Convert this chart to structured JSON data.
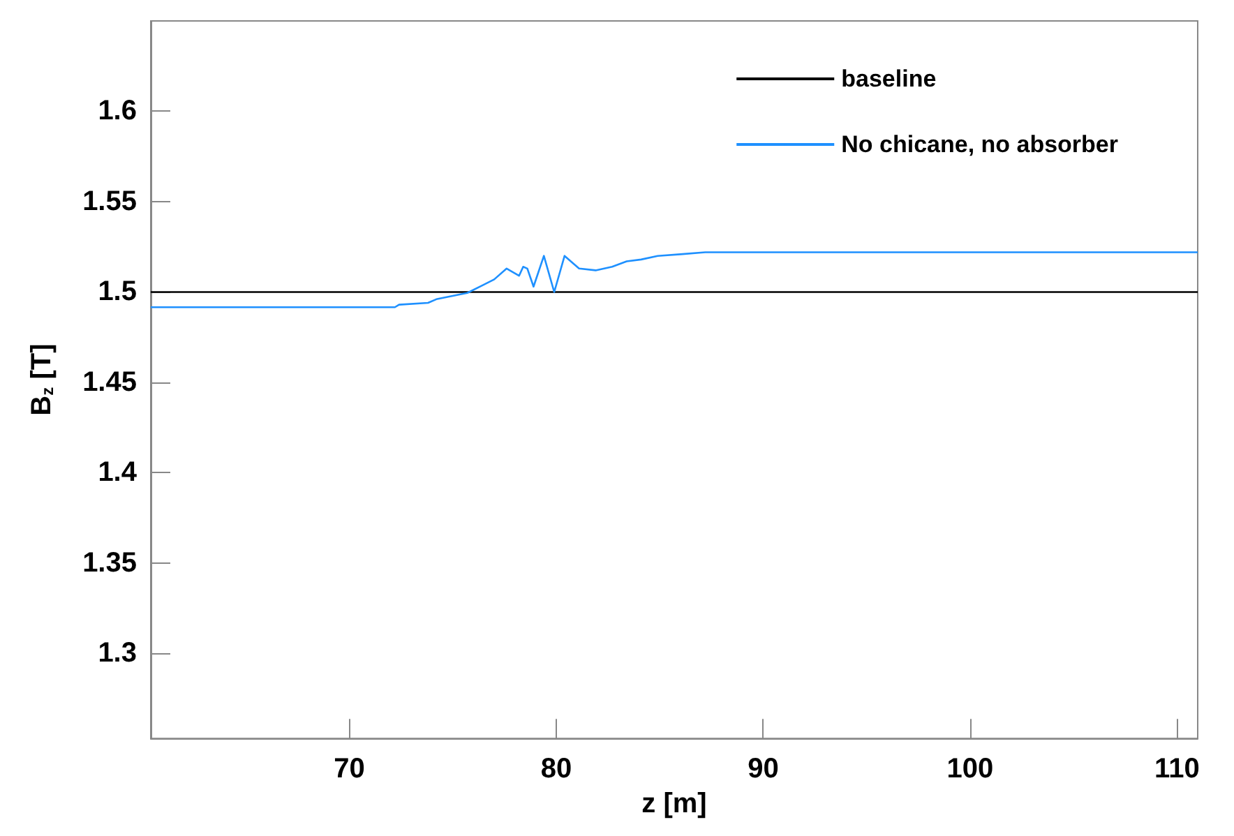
{
  "chart_data": {
    "type": "line",
    "xlabel": "z [m]",
    "ylabel": "B$_{z}$ [T]",
    "xlim": [
      60.4,
      111
    ],
    "xticks": [
      70,
      80,
      90,
      100,
      110
    ],
    "ylim": [
      1.253,
      1.65
    ],
    "yticks": [
      1.3,
      1.35,
      1.4,
      1.45,
      1.5,
      1.55,
      1.6
    ],
    "grid": false,
    "legend": "top right",
    "marker": "none",
    "line_style": "solid",
    "series": [
      {
        "name": "baseline",
        "color": "#000000",
        "x": [
          60.4,
          111
        ],
        "values": [
          1.5,
          1.5
        ]
      },
      {
        "name": "No chicane, no absorber",
        "color": "#1e90ff",
        "x": [
          60.4,
          72.2,
          72.4,
          73.8,
          74.2,
          75.7,
          76.4,
          77.0,
          77.6,
          78.2,
          78.4,
          78.6,
          78.9,
          79.4,
          79.9,
          80.4,
          81.1,
          81.9,
          82.7,
          83.4,
          84.1,
          84.9,
          86.1,
          87.2,
          111
        ],
        "values": [
          1.4916,
          1.4916,
          1.493,
          1.494,
          1.496,
          1.4995,
          1.5035,
          1.507,
          1.513,
          1.509,
          1.514,
          1.513,
          1.503,
          1.52,
          1.5,
          1.52,
          1.513,
          1.512,
          1.514,
          1.517,
          1.518,
          1.52,
          1.521,
          1.522,
          1.522
        ]
      }
    ]
  }
}
